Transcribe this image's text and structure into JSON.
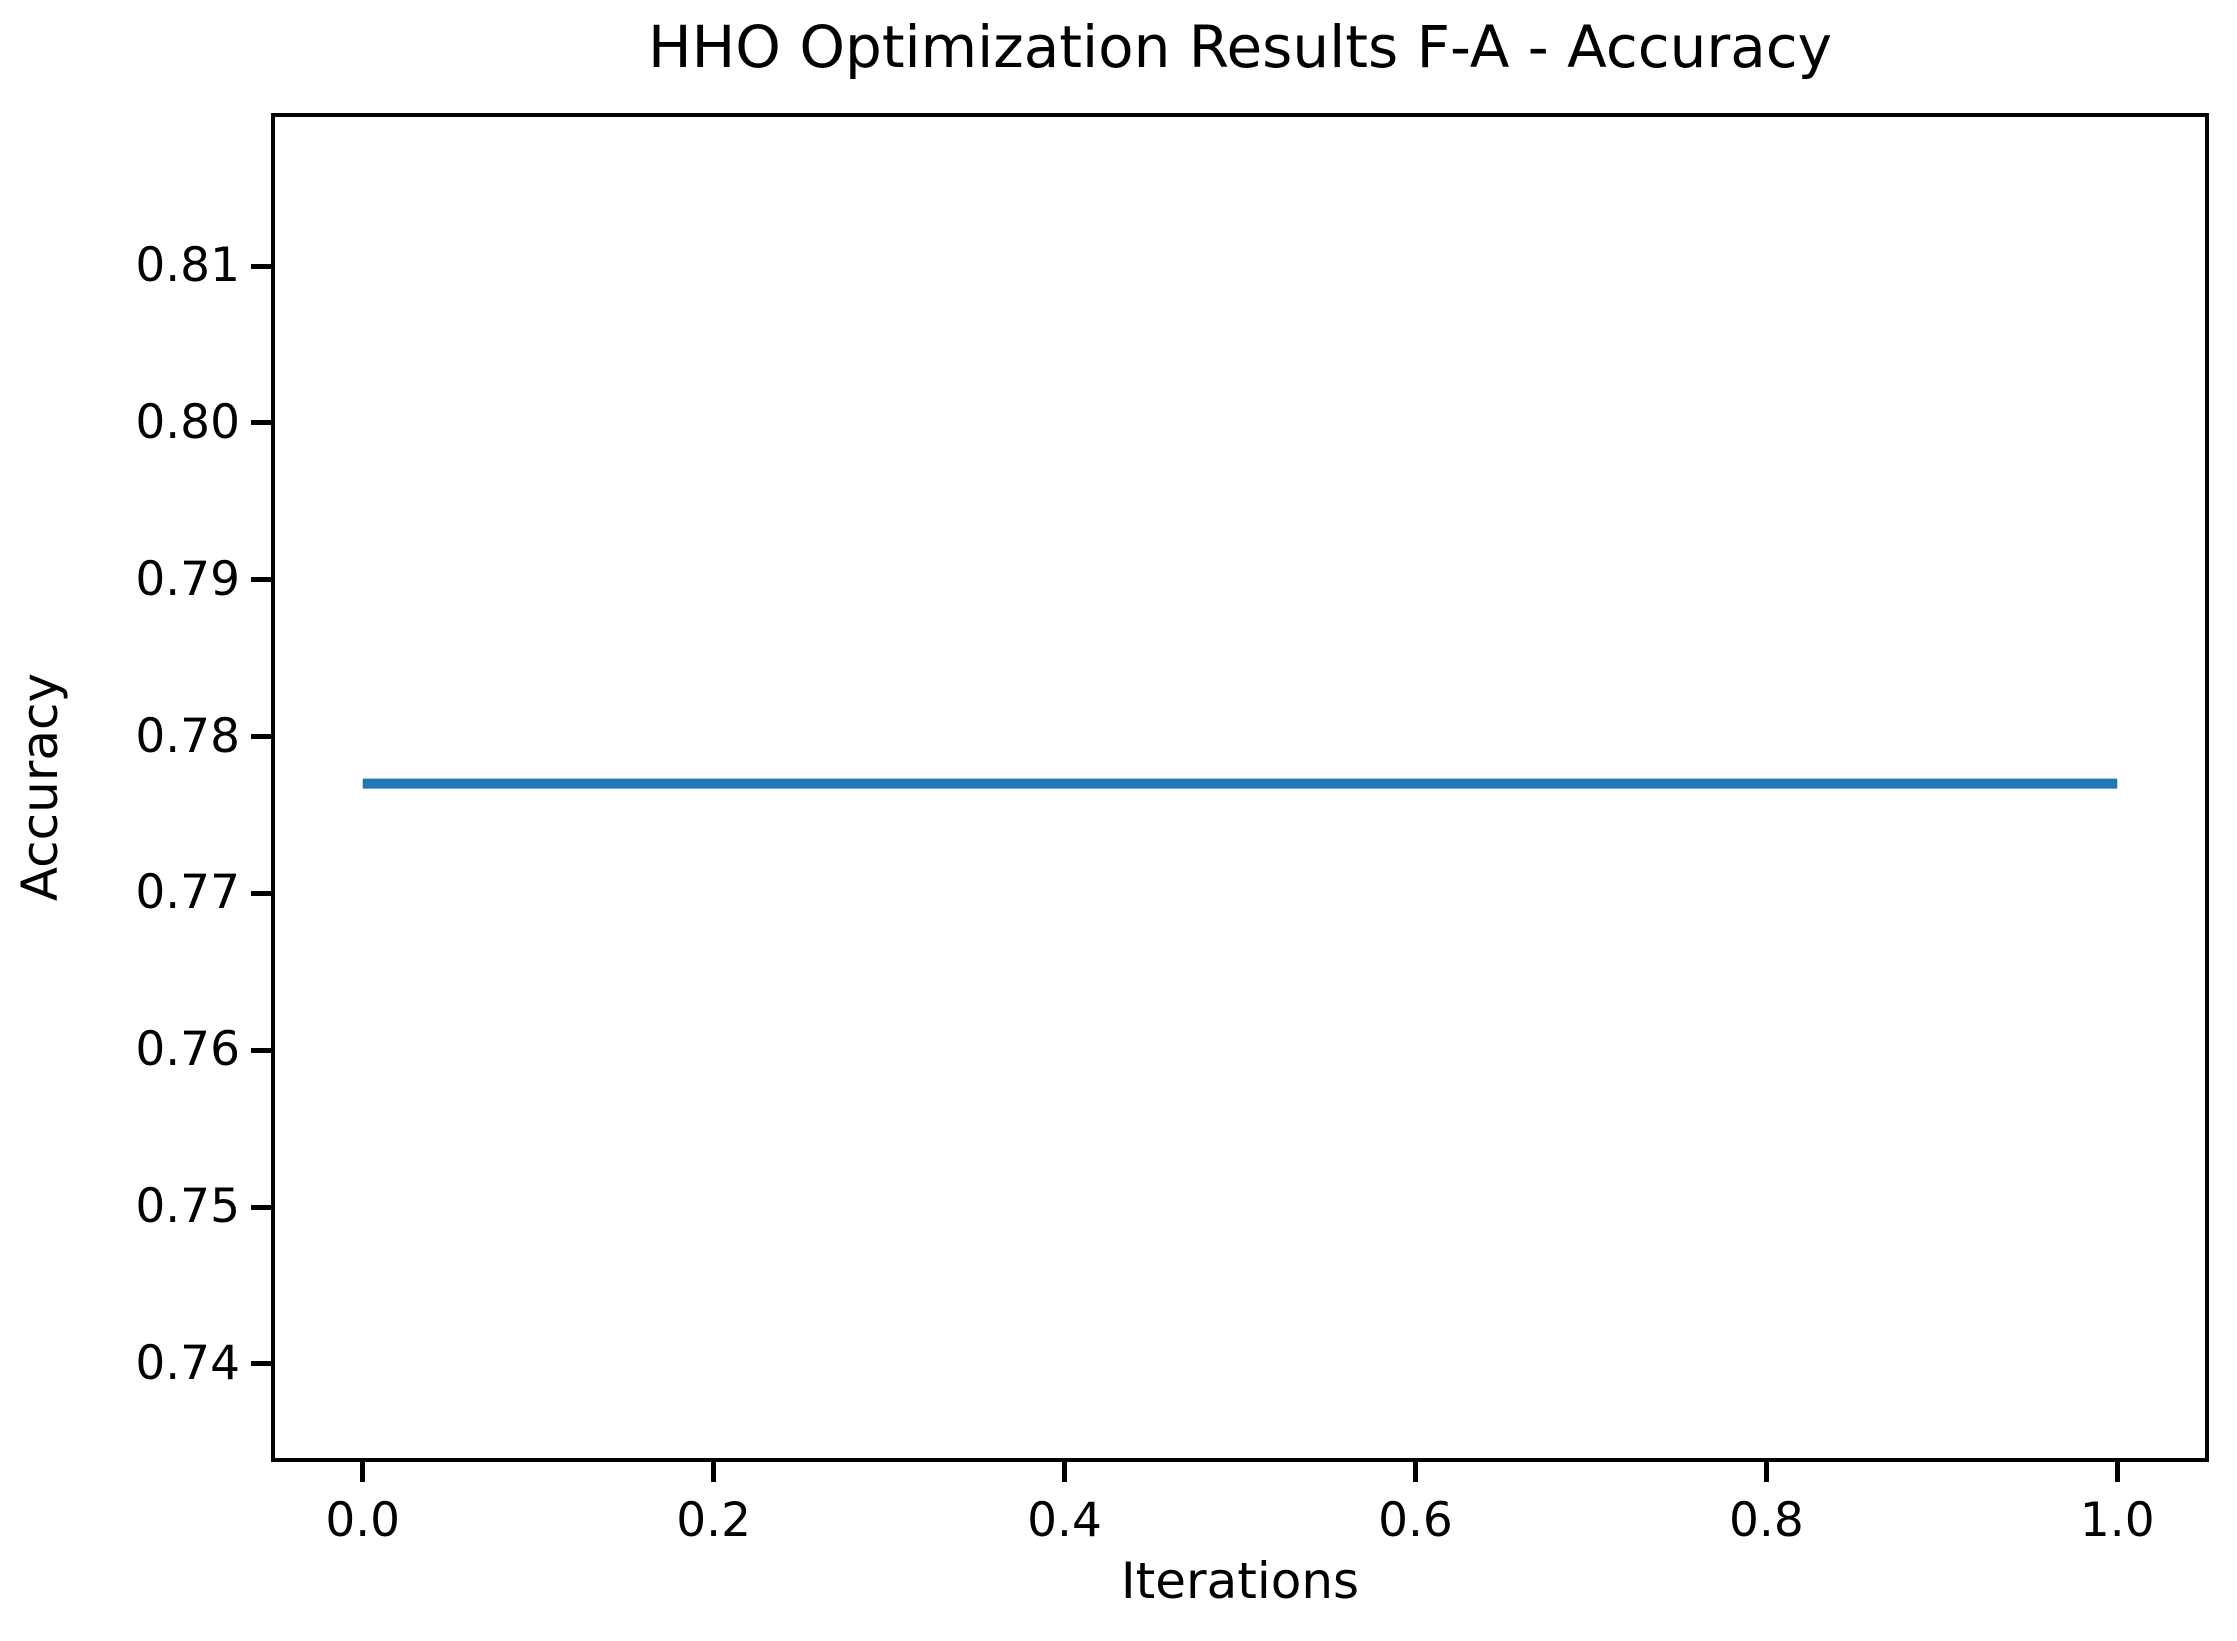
{
  "chart_data": {
    "type": "line",
    "title": "HHO Optimization Results F-A - Accuracy",
    "xlabel": "Iterations",
    "ylabel": "Accuracy",
    "x": [
      0.0,
      1.0
    ],
    "series": [
      {
        "name": "Accuracy",
        "values": [
          0.777,
          0.777
        ],
        "color": "#1f77b4"
      }
    ],
    "xlim": [
      -0.05,
      1.05
    ],
    "ylim": [
      0.734,
      0.8195
    ],
    "xticks": [
      {
        "value": 0.0,
        "label": "0.0"
      },
      {
        "value": 0.2,
        "label": "0.2"
      },
      {
        "value": 0.4,
        "label": "0.4"
      },
      {
        "value": 0.6,
        "label": "0.6"
      },
      {
        "value": 0.8,
        "label": "0.8"
      },
      {
        "value": 1.0,
        "label": "1.0"
      }
    ],
    "yticks": [
      {
        "value": 0.74,
        "label": "0.74"
      },
      {
        "value": 0.75,
        "label": "0.75"
      },
      {
        "value": 0.76,
        "label": "0.76"
      },
      {
        "value": 0.77,
        "label": "0.77"
      },
      {
        "value": 0.78,
        "label": "0.78"
      },
      {
        "value": 0.79,
        "label": "0.79"
      },
      {
        "value": 0.8,
        "label": "0.80"
      },
      {
        "value": 0.81,
        "label": "0.81"
      }
    ],
    "grid": false,
    "legend": null,
    "line_width": 10
  },
  "colors": {
    "line": "#1f77b4",
    "text": "#000000",
    "spine": "#000000",
    "background": "#ffffff"
  }
}
